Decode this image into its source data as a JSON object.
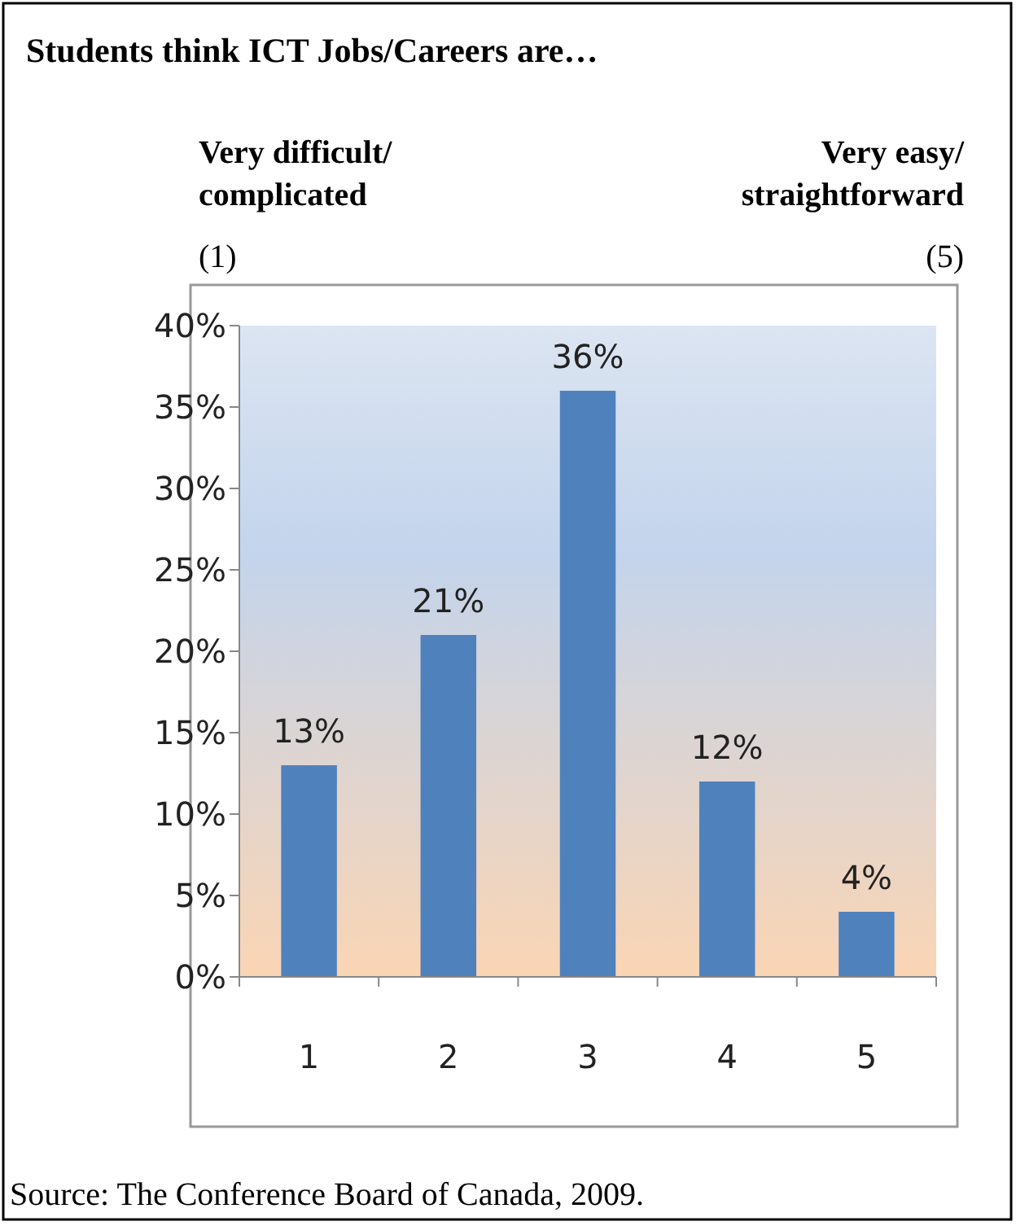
{
  "chart_data": {
    "type": "bar",
    "title": "Students think ICT Jobs/Careers are…",
    "annotations": [
      "Very difficult/\ncomplicated",
      "(1)",
      "Very easy/\nstraightforward",
      "(5)",
      "Source: The Conference Board of Canada, 2009."
    ],
    "categories": [
      "1",
      "2",
      "3",
      "4",
      "5"
    ],
    "values": [
      13,
      21,
      36,
      12,
      4
    ],
    "color": "#4f81bd",
    "value_labels": [
      "13%",
      "21%",
      "36%",
      "12%",
      "4%"
    ],
    "ylim": [
      0,
      40
    ],
    "yticks": [
      {
        "value": 0,
        "label": "0%"
      },
      {
        "value": 5,
        "label": "5%"
      },
      {
        "value": 10,
        "label": "10%"
      },
      {
        "value": 15,
        "label": "15%"
      },
      {
        "value": 20,
        "label": "20%"
      },
      {
        "value": 25,
        "label": "25%"
      },
      {
        "value": 30,
        "label": "30%"
      },
      {
        "value": 35,
        "label": "35%"
      },
      {
        "value": 40,
        "label": "40%"
      }
    ],
    "grid": false
  }
}
